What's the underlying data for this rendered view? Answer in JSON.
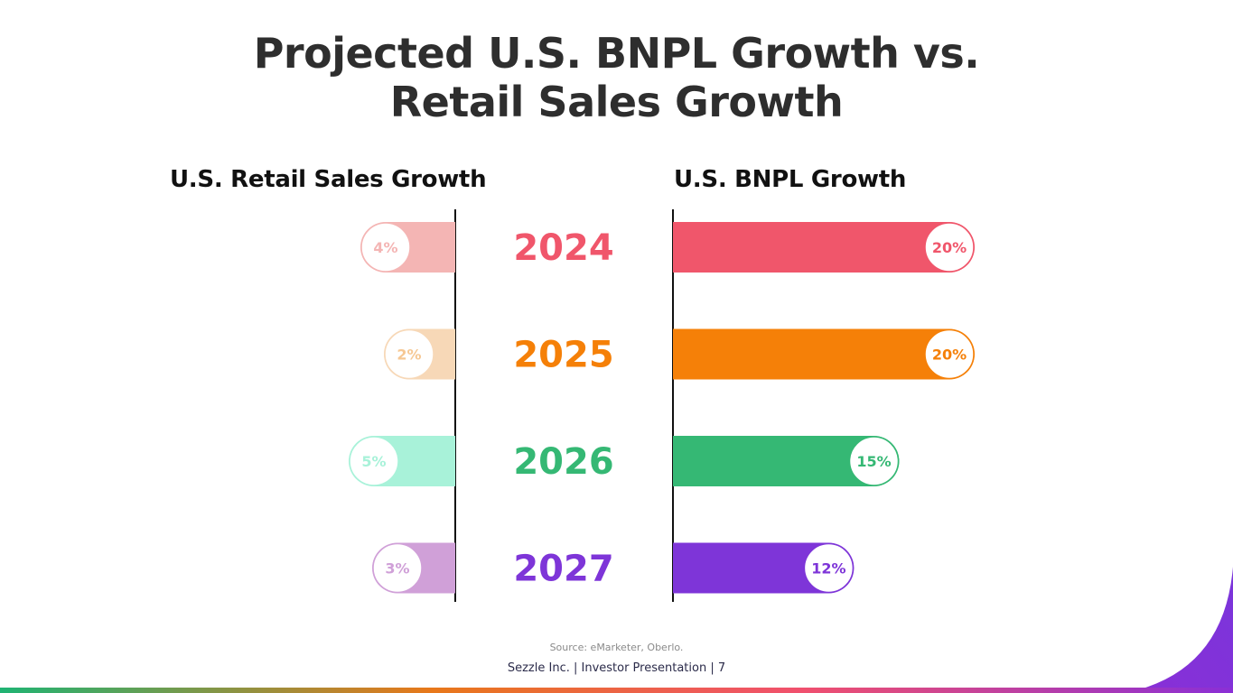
{
  "title_line1": "Projected U.S. BNPL Growth vs.",
  "title_line2": "Retail Sales Growth",
  "source": "Source: eMarketer, Oberlo.",
  "footer": "Sezzle Inc. | Investor Presentation | 7",
  "colors": {
    "brand_gradient": [
      "#1fb373",
      "#e8781a",
      "#f0506e",
      "#8a2fd6"
    ]
  },
  "chart_data": {
    "type": "bar",
    "orientation": "horizontal-butterfly",
    "categories": [
      "2024",
      "2025",
      "2026",
      "2027"
    ],
    "category_colors": [
      "#f0566b",
      "#f58008",
      "#35b874",
      "#7e35d8"
    ],
    "left_bar_colors": [
      "#f4b5b4",
      "#f7d8b7",
      "#a8f2d9",
      "#d0a0d8"
    ],
    "left_label_colors": [
      "#f4b5b4",
      "#f6c894",
      "#a8f2d9",
      "#d0a0d8"
    ],
    "series": [
      {
        "name": "U.S. Retail Sales Growth",
        "side": "left",
        "values": [
          4,
          2,
          5,
          3
        ],
        "labels": [
          "4%",
          "2%",
          "5%",
          "3%"
        ]
      },
      {
        "name": "U.S. BNPL Growth",
        "side": "right",
        "values": [
          20,
          20,
          15,
          12
        ],
        "labels": [
          "20%",
          "20%",
          "15%",
          "12%"
        ]
      }
    ],
    "unit": "%",
    "grid": false
  }
}
